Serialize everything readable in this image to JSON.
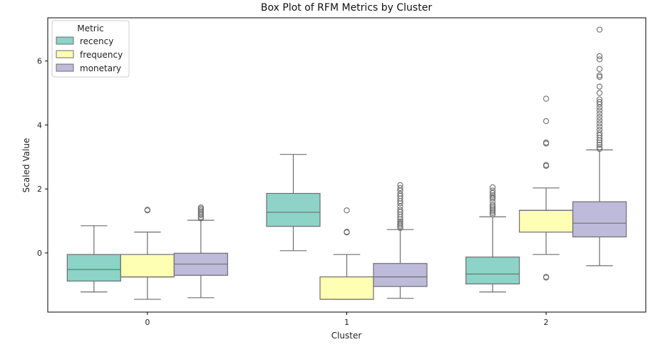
{
  "chart_data": {
    "type": "box",
    "title": "Box Plot of RFM Metrics by Cluster",
    "xlabel": "Cluster",
    "ylabel": "Scaled Value",
    "categories": [
      "0",
      "1",
      "2"
    ],
    "yticks": [
      0,
      2,
      4,
      6
    ],
    "ylim": [
      -1.85,
      7.35
    ],
    "grid": false,
    "legend": {
      "title": "Metric",
      "placement": "top-left"
    },
    "series": [
      {
        "name": "recency",
        "color": "#8dd3c7",
        "boxes": [
          {
            "whisker_low": -1.22,
            "q1": -0.88,
            "median": -0.52,
            "q3": -0.05,
            "whisker_high": 0.85,
            "outliers": []
          },
          {
            "whisker_low": 0.07,
            "q1": 0.83,
            "median": 1.27,
            "q3": 1.86,
            "whisker_high": 3.08,
            "outliers": []
          },
          {
            "whisker_low": -1.22,
            "q1": -0.97,
            "median": -0.66,
            "q3": -0.13,
            "whisker_high": 1.13,
            "outliers": [
              1.2,
              1.25,
              1.3,
              1.35,
              1.4,
              1.45,
              1.5,
              1.6,
              1.7,
              1.75,
              1.8,
              1.87,
              1.95,
              2.05
            ]
          }
        ]
      },
      {
        "name": "frequency",
        "color": "#ffffb3",
        "boxes": [
          {
            "whisker_low": -1.45,
            "q1": -0.75,
            "median": -0.75,
            "q3": -0.05,
            "whisker_high": 0.65,
            "outliers": [
              1.33,
              1.35
            ]
          },
          {
            "whisker_low": -1.45,
            "q1": -1.45,
            "median": -1.45,
            "q3": -0.75,
            "whisker_high": -0.05,
            "outliers": [
              0.64,
              0.66,
              1.33
            ]
          },
          {
            "whisker_low": -0.05,
            "q1": 0.65,
            "median": 1.33,
            "q3": 1.33,
            "whisker_high": 2.03,
            "outliers": [
              -0.77,
              -0.75,
              2.72,
              2.75,
              3.42,
              3.45,
              4.12,
              4.82
            ]
          }
        ]
      },
      {
        "name": "monetary",
        "color": "#bebada",
        "boxes": [
          {
            "whisker_low": -1.4,
            "q1": -0.7,
            "median": -0.35,
            "q3": -0.01,
            "whisker_high": 1.02,
            "outliers": [
              1.08,
              1.12,
              1.18,
              1.22,
              1.28,
              1.33,
              1.38,
              1.42
            ]
          },
          {
            "whisker_low": -1.42,
            "q1": -1.05,
            "median": -0.75,
            "q3": -0.33,
            "whisker_high": 0.73,
            "outliers": [
              0.78,
              0.83,
              0.88,
              0.93,
              0.98,
              1.05,
              1.12,
              1.2,
              1.28,
              1.35,
              1.45,
              1.55,
              1.62,
              1.7,
              1.78,
              1.85,
              1.95,
              2.03,
              2.12
            ]
          }
        ]
      }
    ],
    "extra_outliers_monetary_cluster2": true,
    "monetary_cluster2": {
      "whisker_low": -0.4,
      "q1": 0.5,
      "median": 0.93,
      "q3": 1.6,
      "whisker_high": 3.22,
      "outliers": [
        3.25,
        3.3,
        3.38,
        3.45,
        3.52,
        3.6,
        3.68,
        3.75,
        3.85,
        3.95,
        4.05,
        4.15,
        4.25,
        4.35,
        4.45,
        4.55,
        4.65,
        4.72,
        4.8,
        5.0,
        5.2,
        5.5,
        5.55,
        5.75,
        6.05,
        6.15,
        6.98
      ]
    }
  }
}
